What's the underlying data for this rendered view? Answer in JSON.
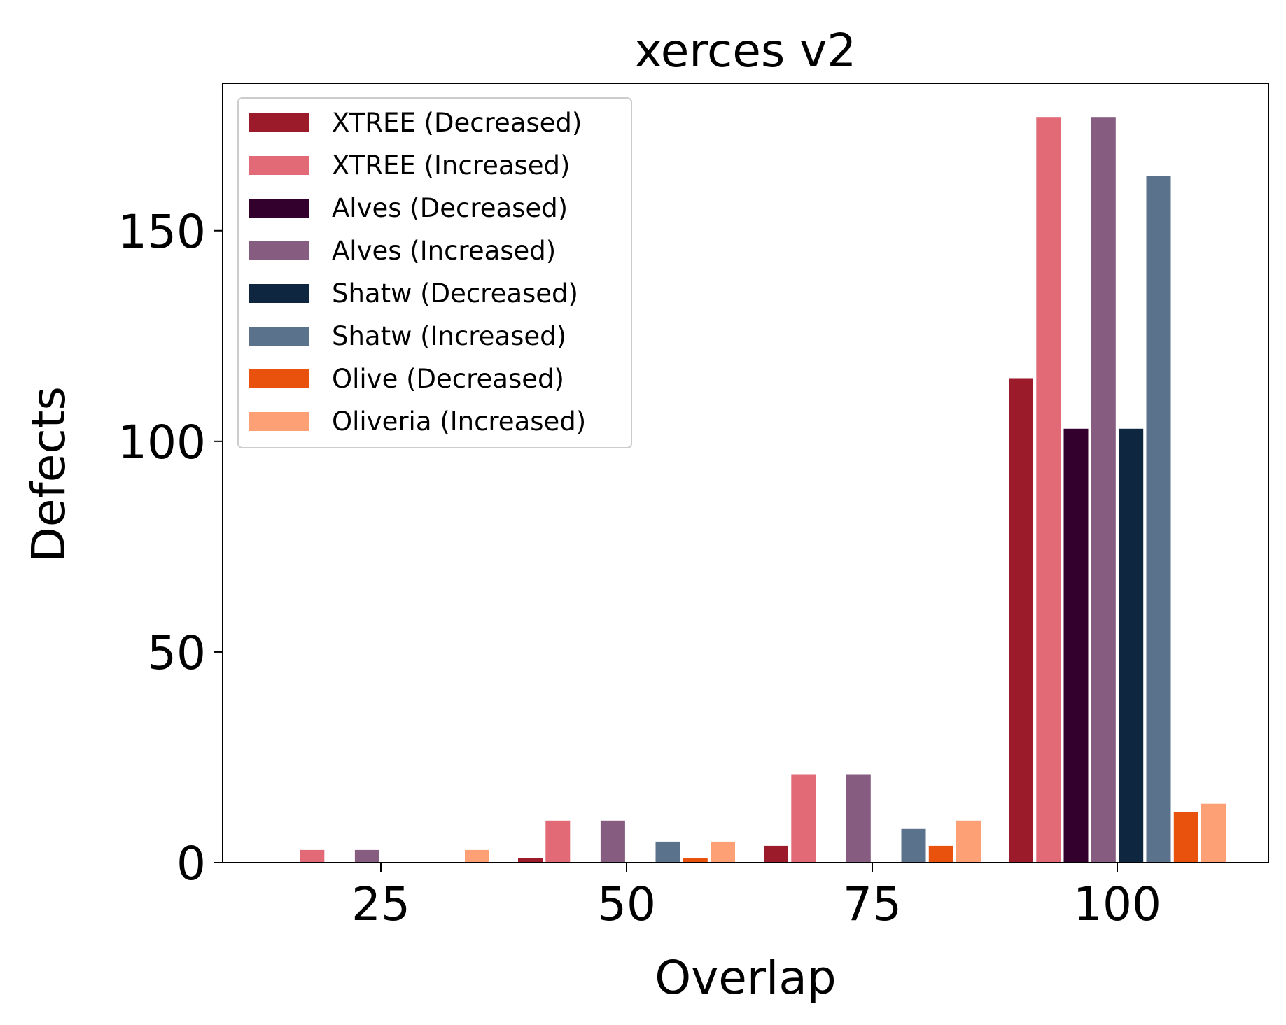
{
  "chart_data": {
    "type": "bar",
    "title": "xerces v2",
    "xlabel": "Overlap",
    "ylabel": "Defects",
    "categories": [
      "25",
      "50",
      "75",
      "100"
    ],
    "y_ticks": [
      "0",
      "50",
      "100",
      "150"
    ],
    "ylim": [
      0,
      185
    ],
    "grid": false,
    "legend_position": "top-left",
    "series": [
      {
        "name": "XTREE (Decreased)",
        "color": "#9b1b2a",
        "values": [
          0,
          1,
          4,
          115
        ]
      },
      {
        "name": "XTREE (Increased)",
        "color": "#e26a76",
        "values": [
          3,
          10,
          21,
          177
        ]
      },
      {
        "name": "Alves (Decreased)",
        "color": "#33002d",
        "values": [
          0,
          0,
          0,
          103
        ]
      },
      {
        "name": "Alves (Increased)",
        "color": "#865c80",
        "values": [
          3,
          10,
          21,
          177
        ]
      },
      {
        "name": "Shatw (Decreased)",
        "color": "#0f2641",
        "values": [
          0,
          0,
          0,
          103
        ]
      },
      {
        "name": "Shatw (Increased)",
        "color": "#5a728c",
        "values": [
          0,
          5,
          8,
          163
        ]
      },
      {
        "name": "Olive (Decreased)",
        "color": "#e8520c",
        "values": [
          0,
          1,
          4,
          12
        ]
      },
      {
        "name": "Oliveria (Increased)",
        "color": "#fda076",
        "values": [
          3,
          5,
          10,
          14
        ]
      }
    ]
  }
}
